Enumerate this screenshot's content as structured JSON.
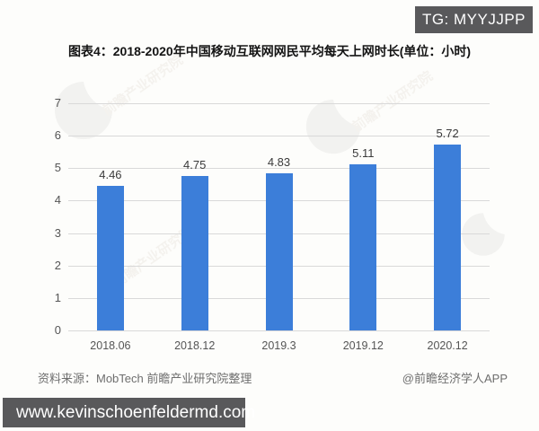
{
  "badge": {
    "text": "TG: MYYJJPP"
  },
  "title": {
    "text": "图表4：2018-2020年中国移动互联网网民平均每天上网时长(单位：小时)"
  },
  "chart_data": {
    "type": "bar",
    "title": "图表4：2018-2020年中国移动互联网网民平均每天上网时长(单位：小时)",
    "categories": [
      "2018.06",
      "2018.12",
      "2019.3",
      "2019.12",
      "2020.12"
    ],
    "values": [
      4.46,
      4.75,
      4.83,
      5.11,
      5.72
    ],
    "value_labels": [
      "4.46",
      "4.75",
      "4.83",
      "5.11",
      "5.72"
    ],
    "xlabel": "",
    "ylabel": "",
    "unit": "小时",
    "ylim": [
      0,
      7
    ],
    "yticks": [
      0,
      1,
      2,
      3,
      4,
      5,
      6,
      7
    ],
    "grid": true,
    "legend_position": "none",
    "bar_color": "#3c7ed9",
    "gridline_color": "#d9d9d9"
  },
  "watermark": {
    "text": "前瞻产业研究院"
  },
  "footer": {
    "source": "资料来源：MobTech 前瞻产业研究院整理",
    "attribution": "@前瞻经济学人APP"
  },
  "bottom_bar": {
    "url": "www.kevinschoenfeldermd.com"
  },
  "colors": {
    "badge_bg": "#59595b",
    "badge_text": "#ffffff",
    "bar": "#3c7ed9",
    "gridline": "#d9d9d9",
    "axis_text": "#555555",
    "title_text": "#141414",
    "footer_text": "#6e6e6e",
    "url_bar_bg": "#59595b",
    "url_bar_text": "#ffffff"
  }
}
